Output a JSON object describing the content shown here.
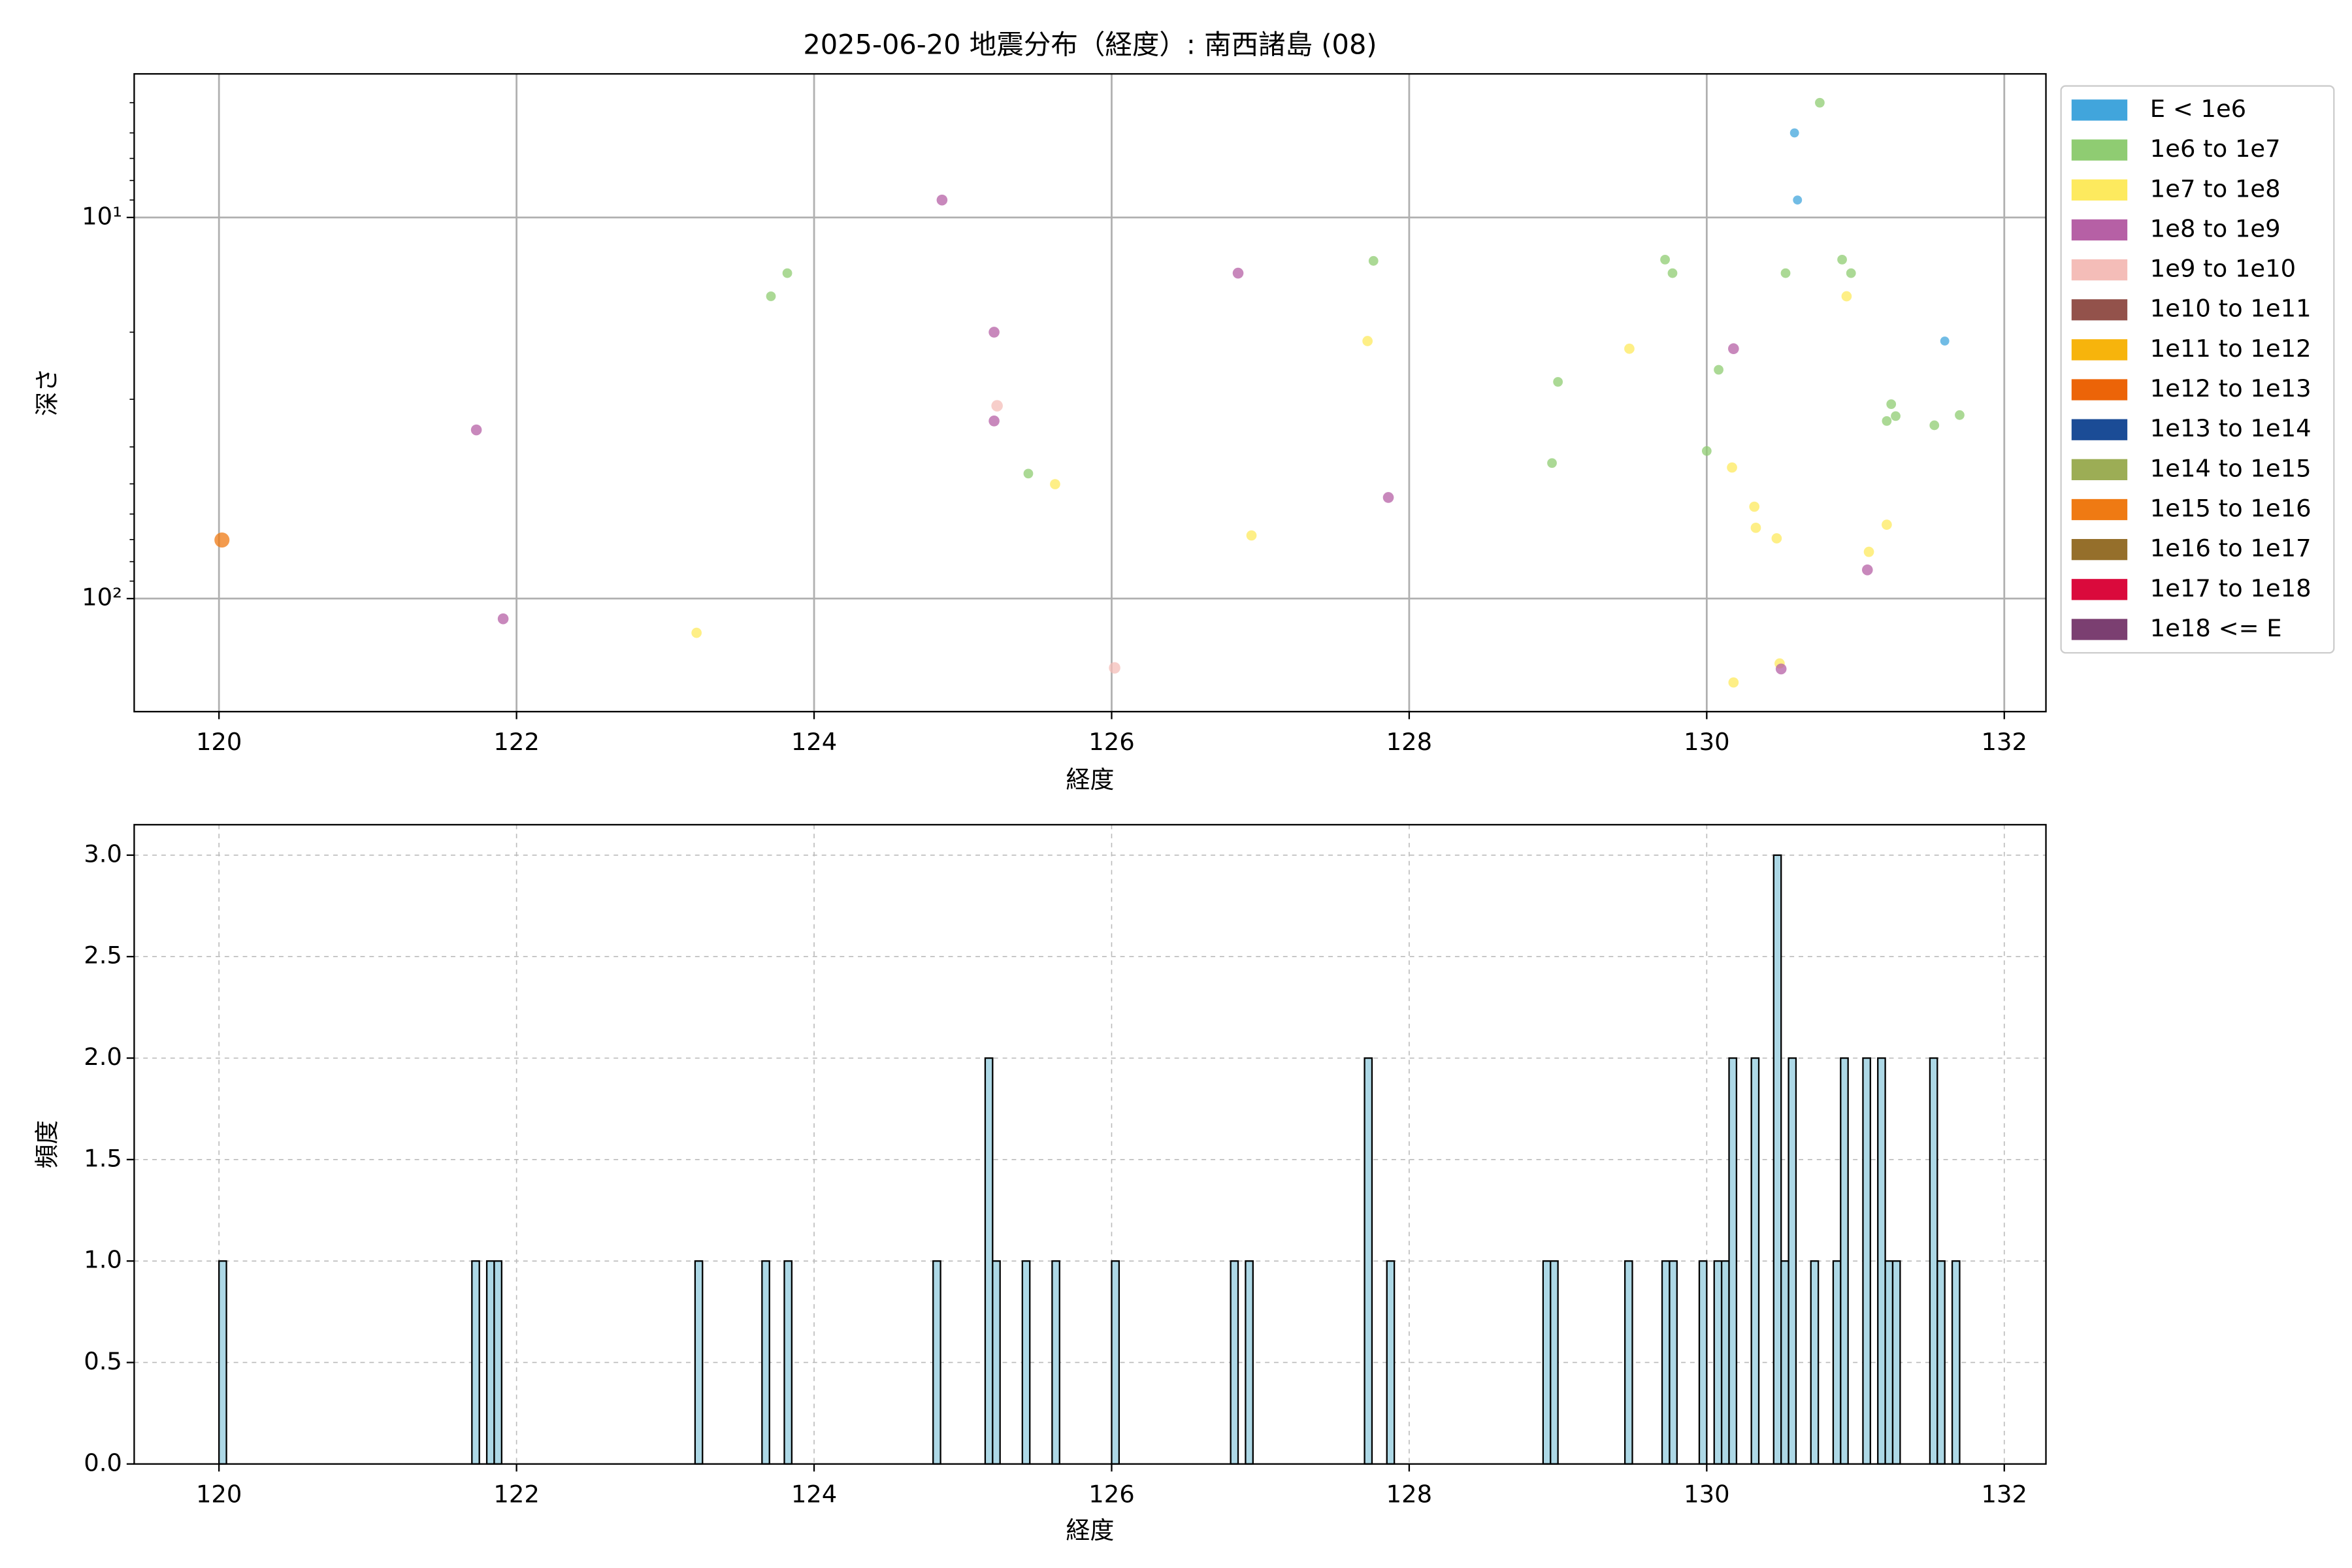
{
  "chart_data": [
    {
      "type": "scatter",
      "title": "2025-06-20 地震分布（経度）: 南西諸島 (08)",
      "xlabel": "経度",
      "ylabel": "深さ",
      "xlim": [
        119.43,
        132.28
      ],
      "xticks": [
        120,
        122,
        124,
        126,
        128,
        130,
        132
      ],
      "ylim": [
        4.2,
        198
      ],
      "yscale": "log",
      "yinvert": true,
      "yticks": [
        {
          "value": 10,
          "label": "10¹"
        },
        {
          "value": 100,
          "label": "10²"
        }
      ],
      "yminorticks": [
        5,
        6,
        7,
        8,
        9,
        20,
        30,
        40,
        50,
        60,
        70,
        80,
        90
      ],
      "grid": true,
      "legend": "outside-right",
      "series": [
        {
          "name": "E < 1e6",
          "color": "#41a5dc",
          "x": [
            130.59,
            130.61,
            131.6
          ],
          "values": [
            6.0,
            9.0,
            21.1
          ]
        },
        {
          "name": "1e6 to 1e7",
          "color": "#8fcc72",
          "x": [
            130.76,
            123.71,
            123.82,
            125.44,
            127.76,
            129.0,
            128.96,
            129.72,
            129.77,
            130.0,
            130.08,
            130.53,
            130.91,
            130.97,
            131.24,
            131.27,
            131.21,
            131.53,
            131.7
          ],
          "values": [
            5.0,
            16.1,
            14.0,
            47.0,
            13.0,
            27.0,
            44.1,
            12.9,
            14.0,
            41.0,
            25.1,
            14.0,
            12.9,
            14.0,
            30.9,
            33.2,
            34.2,
            35.1,
            33.0
          ]
        },
        {
          "name": "1e7 to 1e8",
          "color": "#fdea5e",
          "x": [
            127.72,
            129.48,
            130.94,
            125.62,
            126.94,
            130.17,
            130.32,
            130.33,
            130.47,
            131.09,
            131.21,
            123.21,
            130.18,
            130.49
          ],
          "values": [
            21.1,
            22.1,
            16.1,
            50.1,
            68.3,
            45.3,
            57.4,
            65.2,
            69.5,
            75.4,
            64.0,
            123,
            166,
            148
          ]
        },
        {
          "name": "1e8 to 1e9",
          "color": "#b660a5",
          "x": [
            124.86,
            126.85,
            125.21,
            130.18,
            121.73,
            125.21,
            127.86,
            131.08,
            121.91,
            130.5
          ],
          "values": [
            9.0,
            14.0,
            20.0,
            22.1,
            36.1,
            34.2,
            54.3,
            84.1,
            113,
            153
          ]
        },
        {
          "name": "1e9 to 1e10",
          "color": "#f4bdb8",
          "x": [
            125.23,
            126.02
          ],
          "values": [
            31.2,
            152
          ]
        },
        {
          "name": "1e10 to 1e11",
          "color": "#93524b",
          "x": [],
          "values": []
        },
        {
          "name": "1e11 to 1e12",
          "color": "#f7b40c",
          "x": [],
          "values": []
        },
        {
          "name": "1e12 to 1e13",
          "color": "#ec6408",
          "x": [],
          "values": []
        },
        {
          "name": "1e13 to 1e14",
          "color": "#1b4c96",
          "x": [],
          "values": []
        },
        {
          "name": "1e14 to 1e15",
          "color": "#9cad55",
          "x": [],
          "values": []
        },
        {
          "name": "1e15 to 1e16",
          "color": "#ef7a13",
          "x": [
            120.02
          ],
          "values": [
            70.2
          ]
        },
        {
          "name": "1e16 to 1e17",
          "color": "#956f2b",
          "x": [],
          "values": []
        },
        {
          "name": "1e17 to 1e18",
          "color": "#da0a3c",
          "x": [],
          "values": []
        },
        {
          "name": "1e18 <= E",
          "color": "#7b3f71",
          "x": [],
          "values": []
        }
      ]
    },
    {
      "type": "histogram",
      "xlabel": "経度",
      "ylabel": "頻度",
      "color": "#add8e6",
      "edgecolor": "#000000",
      "xlim": [
        119.43,
        132.28
      ],
      "xticks": [
        120,
        122,
        124,
        126,
        128,
        130,
        132
      ],
      "ylim": [
        0,
        3.15
      ],
      "yticks": [
        {
          "value": 0,
          "label": "0.0"
        },
        {
          "value": 0.5,
          "label": "0.5"
        },
        {
          "value": 1,
          "label": "1.0"
        },
        {
          "value": 1.5,
          "label": "1.5"
        },
        {
          "value": 2,
          "label": "2.0"
        },
        {
          "value": 2.5,
          "label": "2.5"
        },
        {
          "value": 3,
          "label": "3.0"
        }
      ],
      "grid": true,
      "bins": [
        120,
        120.05,
        120.1,
        120.15,
        120.2,
        120.25,
        120.3,
        120.35,
        120.4,
        120.45,
        120.5,
        120.55,
        120.6,
        120.65,
        120.7,
        120.75,
        120.8,
        120.85,
        120.9,
        120.95,
        121,
        121.05,
        121.1,
        121.15,
        121.2,
        121.25,
        121.3,
        121.35,
        121.4,
        121.45,
        121.5,
        121.55,
        121.6,
        121.65,
        121.7,
        121.75,
        121.8,
        121.85,
        121.9,
        121.95,
        122,
        122.05,
        122.1,
        122.15,
        122.2,
        122.25,
        122.3,
        122.35,
        122.4,
        122.45,
        122.5,
        122.55,
        122.6,
        122.65,
        122.7,
        122.75,
        122.8,
        122.85,
        122.9,
        122.95,
        123,
        123.05,
        123.1,
        123.15,
        123.2,
        123.25,
        123.3,
        123.35,
        123.4,
        123.45,
        123.5,
        123.55,
        123.6,
        123.65,
        123.7,
        123.75,
        123.8,
        123.85,
        123.9,
        123.95,
        124,
        124.05,
        124.1,
        124.15,
        124.2,
        124.25,
        124.3,
        124.35,
        124.4,
        124.45,
        124.5,
        124.55,
        124.6,
        124.65,
        124.7,
        124.75,
        124.8,
        124.85,
        124.9,
        124.95,
        125,
        125.05,
        125.1,
        125.15,
        125.2,
        125.25,
        125.3,
        125.35,
        125.4,
        125.45,
        125.5,
        125.55,
        125.6,
        125.65,
        125.7,
        125.75,
        125.8,
        125.85,
        125.9,
        125.95,
        126,
        126.05,
        126.1,
        126.15,
        126.2,
        126.25,
        126.3,
        126.35,
        126.4,
        126.45,
        126.5,
        126.55,
        126.6,
        126.65,
        126.7,
        126.75,
        126.8,
        126.85,
        126.9,
        126.95,
        127,
        127.05,
        127.1,
        127.15,
        127.2,
        127.25,
        127.3,
        127.35,
        127.4,
        127.45,
        127.5,
        127.55,
        127.6,
        127.65,
        127.7,
        127.75,
        127.8,
        127.85,
        127.9,
        127.95,
        128,
        128.05,
        128.1,
        128.15,
        128.2,
        128.25,
        128.3,
        128.35,
        128.4,
        128.45,
        128.5,
        128.55,
        128.6,
        128.65,
        128.7,
        128.75,
        128.8,
        128.85,
        128.9,
        128.95,
        129,
        129.05,
        129.1,
        129.15,
        129.2,
        129.25,
        129.3,
        129.35,
        129.4,
        129.45,
        129.5,
        129.55,
        129.6,
        129.65,
        129.7,
        129.75,
        129.8,
        129.85,
        129.9,
        129.95,
        130,
        130.05,
        130.1,
        130.15,
        130.2,
        130.25,
        130.3,
        130.35,
        130.4,
        130.45,
        130.5,
        130.55,
        130.6,
        130.65,
        130.7,
        130.75,
        130.8,
        130.85,
        130.9,
        130.95,
        131,
        131.05,
        131.1,
        131.15,
        131.2,
        131.25,
        131.3,
        131.35,
        131.4,
        131.45,
        131.5,
        131.55,
        131.6,
        131.65,
        131.7,
        131.75
      ],
      "values": [
        1,
        0,
        0,
        0,
        0,
        0,
        0,
        0,
        0,
        0,
        0,
        0,
        0,
        0,
        0,
        0,
        0,
        0,
        0,
        0,
        0,
        0,
        0,
        0,
        0,
        0,
        0,
        0,
        0,
        0,
        0,
        0,
        0,
        0,
        1,
        0,
        1,
        1,
        0,
        0,
        0,
        0,
        0,
        0,
        0,
        0,
        0,
        0,
        0,
        0,
        0,
        0,
        0,
        0,
        0,
        0,
        0,
        0,
        0,
        0,
        0,
        0,
        0,
        0,
        1,
        0,
        0,
        0,
        0,
        0,
        0,
        0,
        0,
        1,
        0,
        0,
        1,
        0,
        0,
        0,
        0,
        0,
        0,
        0,
        0,
        0,
        0,
        0,
        0,
        0,
        0,
        0,
        0,
        0,
        0,
        0,
        1,
        0,
        0,
        0,
        0,
        0,
        0,
        2,
        1,
        0,
        0,
        0,
        1,
        0,
        0,
        0,
        1,
        0,
        0,
        0,
        0,
        0,
        0,
        0,
        1,
        0,
        0,
        0,
        0,
        0,
        0,
        0,
        0,
        0,
        0,
        0,
        0,
        0,
        0,
        0,
        1,
        0,
        1,
        0,
        0,
        0,
        0,
        0,
        0,
        0,
        0,
        0,
        0,
        0,
        0,
        0,
        0,
        0,
        2,
        0,
        0,
        1,
        0,
        0,
        0,
        0,
        0,
        0,
        0,
        0,
        0,
        0,
        0,
        0,
        0,
        0,
        0,
        0,
        0,
        0,
        0,
        0,
        1,
        1,
        0,
        0,
        0,
        0,
        0,
        0,
        0,
        0,
        0,
        1,
        0,
        0,
        0,
        0,
        1,
        1,
        0,
        0,
        0,
        1,
        0,
        1,
        1,
        2,
        0,
        0,
        2,
        0,
        0,
        3,
        1,
        2,
        0,
        0,
        1,
        0,
        0,
        1,
        2,
        0,
        0,
        2,
        0,
        2,
        1,
        1,
        0,
        0,
        0,
        0,
        2,
        1,
        0,
        1,
        0
      ]
    }
  ]
}
